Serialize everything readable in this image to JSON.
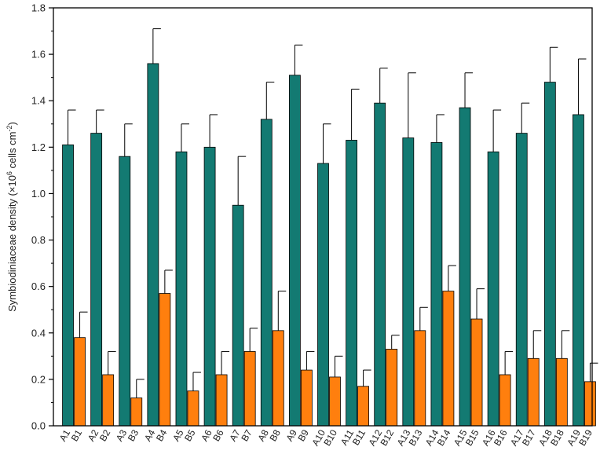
{
  "chart_data": {
    "type": "bar",
    "title": "",
    "xlabel": "",
    "ylabel": {
      "prefix": "Symbiodiniaceae density (×10",
      "exp": "6",
      "middle": " cells cm",
      "exp2": "-2",
      "suffix": ")"
    },
    "ylim": [
      0,
      1.8
    ],
    "yticks": [
      "0.0",
      "0.2",
      "0.4",
      "0.6",
      "0.8",
      "1.0",
      "1.2",
      "1.4",
      "1.6",
      "1.8"
    ],
    "categories": [
      [
        "A1",
        "B1"
      ],
      [
        "A2",
        "B2"
      ],
      [
        "A3",
        "B3"
      ],
      [
        "A4",
        "B4"
      ],
      [
        "A5",
        "B5"
      ],
      [
        "A6",
        "B6"
      ],
      [
        "A7",
        "B7"
      ],
      [
        "A8",
        "B8"
      ],
      [
        "A9",
        "B9"
      ],
      [
        "A10",
        "B10"
      ],
      [
        "A11",
        "B11"
      ],
      [
        "A12",
        "B12"
      ],
      [
        "A13",
        "B13"
      ],
      [
        "A14",
        "B14"
      ],
      [
        "A15",
        "B15"
      ],
      [
        "A16",
        "B16"
      ],
      [
        "A17",
        "B17"
      ],
      [
        "A18",
        "B18"
      ],
      [
        "A19",
        "B19"
      ]
    ],
    "series": [
      {
        "color": "#137a72",
        "values": [
          1.21,
          1.26,
          1.16,
          1.56,
          1.18,
          1.2,
          0.95,
          1.32,
          1.51,
          1.13,
          1.23,
          1.39,
          1.24,
          1.22,
          1.37,
          1.18,
          1.26,
          1.48,
          1.34
        ],
        "errors": [
          0.15,
          0.1,
          0.14,
          0.15,
          0.12,
          0.14,
          0.21,
          0.16,
          0.13,
          0.17,
          0.22,
          0.15,
          0.28,
          0.12,
          0.15,
          0.18,
          0.13,
          0.15,
          0.24
        ]
      },
      {
        "color": "#ff7f0e",
        "values": [
          0.38,
          0.22,
          0.12,
          0.57,
          0.15,
          0.22,
          0.32,
          0.41,
          0.24,
          0.21,
          0.17,
          0.33,
          0.41,
          0.58,
          0.46,
          0.22,
          0.29,
          0.29,
          0.19
        ],
        "errors": [
          0.11,
          0.1,
          0.08,
          0.1,
          0.08,
          0.1,
          0.1,
          0.17,
          0.08,
          0.09,
          0.07,
          0.06,
          0.1,
          0.11,
          0.13,
          0.1,
          0.12,
          0.12,
          0.08
        ]
      }
    ]
  }
}
